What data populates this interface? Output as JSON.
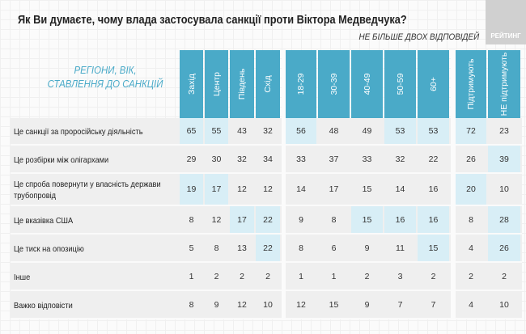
{
  "title": "Як Ви думаєте, чому влада застосувала санкції проти Віктора Медведчука?",
  "subtitle": "НЕ БІЛЬШЕ ДВОХ ВІДПОВІДЕЙ",
  "logo": "РЕЙТИНГ",
  "row_header": [
    "РЕГІОНИ, ВІК,",
    "СТАВЛЕННЯ ДО САНКЦІЙ"
  ],
  "accent": "#4aaac8",
  "highlight": "#d8eef6",
  "columns": [
    "Захід",
    "Центр",
    "Південь",
    "Схід",
    "18-29",
    "30-39",
    "40-49",
    "50-59",
    "60+",
    "Підтримують",
    "НЕ підтримують"
  ],
  "rows": [
    {
      "label": "Це санкції за проросійську діяльність",
      "values": [
        "65",
        "55",
        "43",
        "32",
        "56",
        "48",
        "49",
        "53",
        "53",
        "72",
        "23"
      ],
      "hl": [
        0,
        1,
        4,
        7,
        8,
        9
      ]
    },
    {
      "label": "Це розбірки між олігархами",
      "values": [
        "29",
        "30",
        "32",
        "34",
        "33",
        "37",
        "33",
        "32",
        "22",
        "26",
        "39"
      ],
      "hl": [
        10
      ]
    },
    {
      "label": "Це спроба повернути у власність держави трубопровід",
      "values": [
        "19",
        "17",
        "12",
        "12",
        "14",
        "17",
        "15",
        "14",
        "16",
        "20",
        "10"
      ],
      "hl": [
        0,
        1,
        9
      ]
    },
    {
      "label": "Це вказівка США",
      "values": [
        "8",
        "12",
        "17",
        "22",
        "9",
        "8",
        "15",
        "16",
        "16",
        "8",
        "28"
      ],
      "hl": [
        2,
        3,
        6,
        7,
        8,
        10
      ]
    },
    {
      "label": "Це тиск на опозицію",
      "values": [
        "5",
        "8",
        "13",
        "22",
        "8",
        "6",
        "9",
        "11",
        "15",
        "4",
        "26"
      ],
      "hl": [
        3,
        8,
        10
      ]
    },
    {
      "label": "Інше",
      "values": [
        "1",
        "2",
        "2",
        "2",
        "1",
        "1",
        "2",
        "3",
        "2",
        "2",
        "2"
      ],
      "hl": []
    },
    {
      "label": "Важко відповісти",
      "values": [
        "8",
        "9",
        "12",
        "10",
        "12",
        "15",
        "9",
        "7",
        "7",
        "4",
        "10"
      ],
      "hl": []
    }
  ]
}
